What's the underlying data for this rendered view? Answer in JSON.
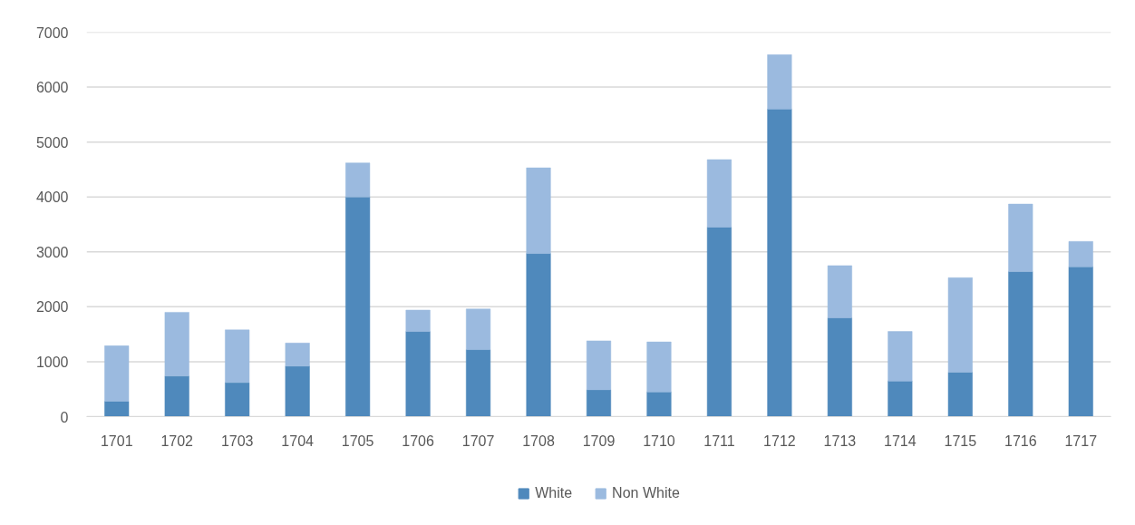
{
  "chart_data": {
    "type": "bar",
    "stacked": true,
    "categories": [
      "1701",
      "1702",
      "1703",
      "1704",
      "1705",
      "1706",
      "1707",
      "1708",
      "1709",
      "1710",
      "1711",
      "1712",
      "1713",
      "1714",
      "1715",
      "1716",
      "1717"
    ],
    "series": [
      {
        "name": "White",
        "color": "#4f89bc",
        "values": [
          280,
          740,
          620,
          920,
          4000,
          1550,
          1220,
          2970,
          490,
          450,
          3450,
          5600,
          1800,
          650,
          810,
          2640,
          2730
        ]
      },
      {
        "name": "Non White",
        "color": "#9bbadf",
        "values": [
          1010,
          1160,
          960,
          420,
          620,
          390,
          740,
          1560,
          890,
          910,
          1230,
          990,
          950,
          900,
          1720,
          1230,
          460
        ]
      }
    ],
    "ylim": [
      0,
      7000
    ],
    "yticks": [
      0,
      1000,
      2000,
      3000,
      4000,
      5000,
      6000,
      7000
    ],
    "grid": "y",
    "legend": "bottom"
  }
}
